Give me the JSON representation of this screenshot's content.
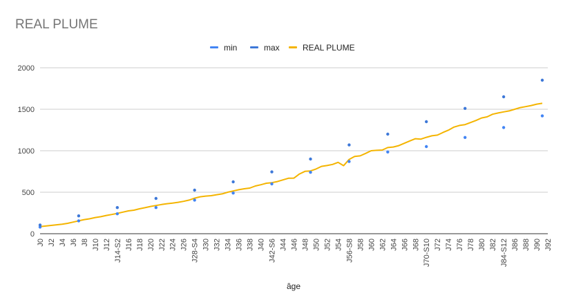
{
  "chart_data": {
    "type": "line",
    "title": "REAL PLUME",
    "xlabel": "âge",
    "ylabel": "",
    "ylim": [
      0,
      2000
    ],
    "yticks": [
      0,
      500,
      1000,
      1500,
      2000
    ],
    "x_tick_labels": [
      "J0",
      "J2",
      "J4",
      "J6",
      "J8",
      "J10",
      "J12",
      "J14-S2",
      "J16",
      "J18",
      "J20",
      "J22",
      "J24",
      "J26",
      "J28-S4",
      "J30",
      "J32",
      "J34",
      "J36",
      "J38",
      "J40",
      "J42-S6",
      "J44",
      "J46",
      "J48",
      "J50",
      "J52",
      "J54",
      "J56-S8",
      "J58",
      "J60",
      "J62",
      "J64",
      "J66",
      "J68",
      "J70-S10",
      "J72",
      "J74",
      "J76",
      "J78",
      "J80",
      "J82",
      "J84-S12",
      "J86",
      "J88",
      "J90",
      "J92"
    ],
    "x_max_day": 92,
    "legend": {
      "position": "top",
      "entries": [
        "min",
        "max",
        "REAL PLUME"
      ]
    },
    "grid": true,
    "colors": {
      "min": "#4285f4",
      "max": "#3d78d8",
      "real": "#f4b400"
    },
    "series": [
      {
        "name": "min",
        "kind": "scatter",
        "points": [
          [
            0,
            80
          ],
          [
            7,
            155
          ],
          [
            14,
            240
          ],
          [
            21,
            315
          ],
          [
            28,
            405
          ],
          [
            35,
            490
          ],
          [
            42,
            600
          ],
          [
            49,
            740
          ],
          [
            56,
            870
          ],
          [
            63,
            985
          ],
          [
            70,
            1050
          ],
          [
            77,
            1160
          ],
          [
            84,
            1280
          ],
          [
            91,
            1420
          ]
        ]
      },
      {
        "name": "max",
        "kind": "scatter",
        "points": [
          [
            0,
            105
          ],
          [
            7,
            215
          ],
          [
            14,
            315
          ],
          [
            21,
            425
          ],
          [
            28,
            525
          ],
          [
            35,
            625
          ],
          [
            42,
            745
          ],
          [
            49,
            900
          ],
          [
            56,
            1070
          ],
          [
            63,
            1200
          ],
          [
            70,
            1350
          ],
          [
            77,
            1510
          ],
          [
            84,
            1650
          ],
          [
            91,
            1850
          ]
        ]
      },
      {
        "name": "REAL PLUME",
        "kind": "line",
        "points": [
          [
            0,
            85
          ],
          [
            2,
            100
          ],
          [
            4,
            115
          ],
          [
            5,
            125
          ],
          [
            6,
            140
          ],
          [
            7,
            155
          ],
          [
            8,
            170
          ],
          [
            9,
            180
          ],
          [
            10,
            195
          ],
          [
            11,
            205
          ],
          [
            12,
            220
          ],
          [
            13,
            232
          ],
          [
            14,
            245
          ],
          [
            15,
            260
          ],
          [
            16,
            275
          ],
          [
            17,
            283
          ],
          [
            18,
            300
          ],
          [
            19,
            313
          ],
          [
            20,
            328
          ],
          [
            21,
            340
          ],
          [
            22,
            352
          ],
          [
            23,
            362
          ],
          [
            24,
            368
          ],
          [
            25,
            378
          ],
          [
            26,
            390
          ],
          [
            27,
            405
          ],
          [
            28,
            428
          ],
          [
            29,
            445
          ],
          [
            30,
            453
          ],
          [
            31,
            458
          ],
          [
            32,
            470
          ],
          [
            33,
            480
          ],
          [
            34,
            500
          ],
          [
            35,
            515
          ],
          [
            36,
            530
          ],
          [
            37,
            542
          ],
          [
            38,
            550
          ],
          [
            39,
            575
          ],
          [
            40,
            590
          ],
          [
            41,
            608
          ],
          [
            42,
            615
          ],
          [
            43,
            628
          ],
          [
            44,
            648
          ],
          [
            45,
            668
          ],
          [
            46,
            670
          ],
          [
            47,
            720
          ],
          [
            48,
            752
          ],
          [
            49,
            757
          ],
          [
            50,
            780
          ],
          [
            51,
            812
          ],
          [
            52,
            822
          ],
          [
            53,
            835
          ],
          [
            54,
            860
          ],
          [
            55,
            820
          ],
          [
            56,
            895
          ],
          [
            57,
            932
          ],
          [
            58,
            938
          ],
          [
            59,
            968
          ],
          [
            60,
            1000
          ],
          [
            61,
            1005
          ],
          [
            62,
            1008
          ],
          [
            63,
            1038
          ],
          [
            64,
            1045
          ],
          [
            65,
            1062
          ],
          [
            66,
            1090
          ],
          [
            67,
            1118
          ],
          [
            68,
            1145
          ],
          [
            69,
            1140
          ],
          [
            70,
            1162
          ],
          [
            71,
            1180
          ],
          [
            72,
            1188
          ],
          [
            73,
            1220
          ],
          [
            74,
            1248
          ],
          [
            75,
            1285
          ],
          [
            76,
            1305
          ],
          [
            77,
            1315
          ],
          [
            78,
            1340
          ],
          [
            79,
            1365
          ],
          [
            80,
            1395
          ],
          [
            81,
            1408
          ],
          [
            82,
            1440
          ],
          [
            83,
            1455
          ],
          [
            84,
            1468
          ],
          [
            85,
            1480
          ],
          [
            86,
            1500
          ],
          [
            87,
            1520
          ],
          [
            88,
            1532
          ],
          [
            89,
            1545
          ],
          [
            90,
            1562
          ],
          [
            91,
            1572
          ]
        ]
      }
    ]
  }
}
